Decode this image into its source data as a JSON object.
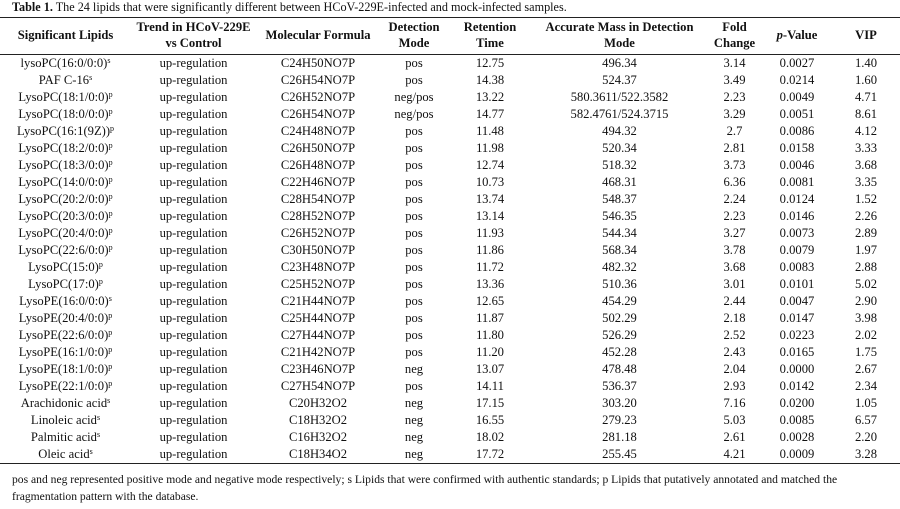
{
  "caption": {
    "label": "Table 1.",
    "text": " The 24 lipids that were significantly different between HCoV-229E-infected and mock-infected samples."
  },
  "headers": {
    "lipid": "Significant Lipids",
    "trend": "Trend in HCoV-229E vs Control",
    "formula": "Molecular Formula",
    "mode": "Detection Mode",
    "rt": "Retention Time",
    "mass": "Accurate Mass in Detection Mode",
    "fold": "Fold Change",
    "p_italic": "p",
    "p_rest": "-Value",
    "vip": "VIP"
  },
  "rows": [
    {
      "lipid": "lysoPC(16:0/0:0)",
      "sup": "s",
      "trend": "up-regulation",
      "formula": "C24H50NO7P",
      "mode": "pos",
      "rt": "12.75",
      "mass": "496.34",
      "fold": "3.14",
      "p": "0.0027",
      "vip": "1.40"
    },
    {
      "lipid": "PAF C-16",
      "sup": "s",
      "trend": "up-regulation",
      "formula": "C26H54NO7P",
      "mode": "pos",
      "rt": "14.38",
      "mass": "524.37",
      "fold": "3.49",
      "p": "0.0214",
      "vip": "1.60"
    },
    {
      "lipid": "LysoPC(18:1/0:0)",
      "sup": "p",
      "trend": "up-regulation",
      "formula": "C26H52NO7P",
      "mode": "neg/pos",
      "rt": "13.22",
      "mass": "580.3611/522.3582",
      "fold": "2.23",
      "p": "0.0049",
      "vip": "4.71"
    },
    {
      "lipid": "LysoPC(18:0/0:0)",
      "sup": "p",
      "trend": "up-regulation",
      "formula": "C26H54NO7P",
      "mode": "neg/pos",
      "rt": "14.77",
      "mass": "582.4761/524.3715",
      "fold": "3.29",
      "p": "0.0051",
      "vip": "8.61"
    },
    {
      "lipid": "LysoPC(16:1(9Z))",
      "sup": "p",
      "trend": "up-regulation",
      "formula": "C24H48NO7P",
      "mode": "pos",
      "rt": "11.48",
      "mass": "494.32",
      "fold": "2.7",
      "p": "0.0086",
      "vip": "4.12"
    },
    {
      "lipid": "LysoPC(18:2/0:0)",
      "sup": "p",
      "trend": "up-regulation",
      "formula": "C26H50NO7P",
      "mode": "pos",
      "rt": "11.98",
      "mass": "520.34",
      "fold": "2.81",
      "p": "0.0158",
      "vip": "3.33"
    },
    {
      "lipid": "LysoPC(18:3/0:0)",
      "sup": "p",
      "trend": "up-regulation",
      "formula": "C26H48NO7P",
      "mode": "pos",
      "rt": "12.74",
      "mass": "518.32",
      "fold": "3.73",
      "p": "0.0046",
      "vip": "3.68"
    },
    {
      "lipid": "LysoPC(14:0/0:0)",
      "sup": "p",
      "trend": "up-regulation",
      "formula": "C22H46NO7P",
      "mode": "pos",
      "rt": "10.73",
      "mass": "468.31",
      "fold": "6.36",
      "p": "0.0081",
      "vip": "3.35"
    },
    {
      "lipid": "LysoPC(20:2/0:0)",
      "sup": "p",
      "trend": "up-regulation",
      "formula": "C28H54NO7P",
      "mode": "pos",
      "rt": "13.74",
      "mass": "548.37",
      "fold": "2.24",
      "p": "0.0124",
      "vip": "1.52"
    },
    {
      "lipid": "LysoPC(20:3/0:0)",
      "sup": "p",
      "trend": "up-regulation",
      "formula": "C28H52NO7P",
      "mode": "pos",
      "rt": "13.14",
      "mass": "546.35",
      "fold": "2.23",
      "p": "0.0146",
      "vip": "2.26"
    },
    {
      "lipid": "LysoPC(20:4/0:0)",
      "sup": "p",
      "trend": "up-regulation",
      "formula": "C26H52NO7P",
      "mode": "pos",
      "rt": "11.93",
      "mass": "544.34",
      "fold": "3.27",
      "p": "0.0073",
      "vip": "2.89"
    },
    {
      "lipid": "LysoPC(22:6/0:0)",
      "sup": "p",
      "trend": "up-regulation",
      "formula": "C30H50NO7P",
      "mode": "pos",
      "rt": "11.86",
      "mass": "568.34",
      "fold": "3.78",
      "p": "0.0079",
      "vip": "1.97"
    },
    {
      "lipid": "LysoPC(15:0)",
      "sup": "p",
      "trend": "up-regulation",
      "formula": "C23H48NO7P",
      "mode": "pos",
      "rt": "11.72",
      "mass": "482.32",
      "fold": "3.68",
      "p": "0.0083",
      "vip": "2.88"
    },
    {
      "lipid": "LysoPC(17:0)",
      "sup": "p",
      "trend": "up-regulation",
      "formula": "C25H52NO7P",
      "mode": "pos",
      "rt": "13.36",
      "mass": "510.36",
      "fold": "3.01",
      "p": "0.0101",
      "vip": "5.02"
    },
    {
      "lipid": "LysoPE(16:0/0:0)",
      "sup": "s",
      "trend": "up-regulation",
      "formula": "C21H44NO7P",
      "mode": "pos",
      "rt": "12.65",
      "mass": "454.29",
      "fold": "2.44",
      "p": "0.0047",
      "vip": "2.90"
    },
    {
      "lipid": "LysoPE(20:4/0:0)",
      "sup": "p",
      "trend": "up-regulation",
      "formula": "C25H44NO7P",
      "mode": "pos",
      "rt": "11.87",
      "mass": "502.29",
      "fold": "2.18",
      "p": "0.0147",
      "vip": "3.98"
    },
    {
      "lipid": "LysoPE(22:6/0:0)",
      "sup": "p",
      "trend": "up-regulation",
      "formula": "C27H44NO7P",
      "mode": "pos",
      "rt": "11.80",
      "mass": "526.29",
      "fold": "2.52",
      "p": "0.0223",
      "vip": "2.02"
    },
    {
      "lipid": "LysoPE(16:1/0:0)",
      "sup": "p",
      "trend": "up-regulation",
      "formula": "C21H42NO7P",
      "mode": "pos",
      "rt": "11.20",
      "mass": "452.28",
      "fold": "2.43",
      "p": "0.0165",
      "vip": "1.75"
    },
    {
      "lipid": "LysoPE(18:1/0:0)",
      "sup": "p",
      "trend": "up-regulation",
      "formula": "C23H46NO7P",
      "mode": "neg",
      "rt": "13.07",
      "mass": "478.48",
      "fold": "2.04",
      "p": "0.0000",
      "vip": "2.67"
    },
    {
      "lipid": "LysoPE(22:1/0:0)",
      "sup": "p",
      "trend": "up-regulation",
      "formula": "C27H54NO7P",
      "mode": "pos",
      "rt": "14.11",
      "mass": "536.37",
      "fold": "2.93",
      "p": "0.0142",
      "vip": "2.34"
    },
    {
      "lipid": "Arachidonic acid",
      "sup": "s",
      "trend": "up-regulation",
      "formula": "C20H32O2",
      "mode": "neg",
      "rt": "17.15",
      "mass": "303.20",
      "fold": "7.16",
      "p": "0.0200",
      "vip": "1.05"
    },
    {
      "lipid": "Linoleic acid",
      "sup": "s",
      "trend": "up-regulation",
      "formula": "C18H32O2",
      "mode": "neg",
      "rt": "16.55",
      "mass": "279.23",
      "fold": "5.03",
      "p": "0.0085",
      "vip": "6.57"
    },
    {
      "lipid": "Palmitic acid",
      "sup": "s",
      "trend": "up-regulation",
      "formula": "C16H32O2",
      "mode": "neg",
      "rt": "18.02",
      "mass": "281.18",
      "fold": "2.61",
      "p": "0.0028",
      "vip": "2.20"
    },
    {
      "lipid": "Oleic acid",
      "sup": "s",
      "trend": "up-regulation",
      "formula": "C18H34O2",
      "mode": "neg",
      "rt": "17.72",
      "mass": "255.45",
      "fold": "4.21",
      "p": "0.0009",
      "vip": "3.28"
    }
  ],
  "footnote": "pos and neg represented positive mode and negative mode respectively; s Lipids that were confirmed with authentic standards; p Lipids that putatively annotated and matched the fragmentation pattern with the database."
}
